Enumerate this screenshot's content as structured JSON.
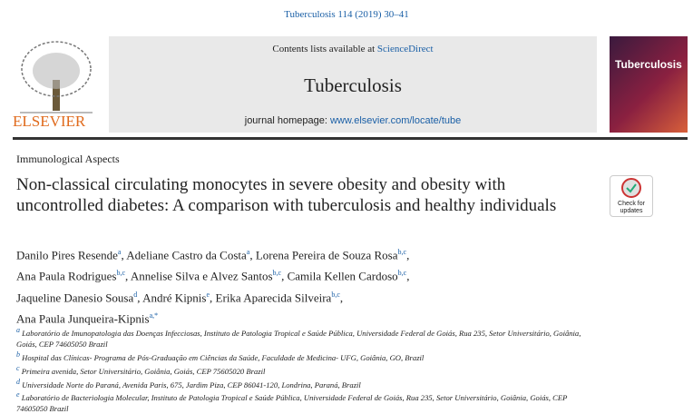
{
  "journal_ref": "Tuberculosis 114 (2019) 30–41",
  "banner": {
    "contents_prefix": "Contents lists available at",
    "contents_link": "ScienceDirect",
    "journal": "Tuberculosis",
    "homepage_prefix": "journal homepage:",
    "homepage_link": "www.elsevier.com/locate/tube",
    "publisher": "ELSEVIER",
    "cover_title": "Tuberculosis"
  },
  "section": "Immunological Aspects",
  "title": "Non-classical circulating monocytes in severe obesity and obesity with uncontrolled diabetes: A comparison with tuberculosis and healthy individuals",
  "check_updates": [
    "Check for",
    "updates"
  ],
  "author_lines": [
    [
      {
        "name": "Danilo Pires Resende",
        "sup": "a",
        "sep": ","
      },
      {
        "name": "Adeliane Castro da Costa",
        "sup": "a",
        "sep": ","
      },
      {
        "name": "Lorena Pereira de Souza Rosa",
        "sup": "b,c",
        "sep": ","
      }
    ],
    [
      {
        "name": "Ana Paula Rodrigues",
        "sup": "b,c",
        "sep": ","
      },
      {
        "name": "Annelise Silva e Alvez Santos",
        "sup": "b,c",
        "sep": ","
      },
      {
        "name": "Camila Kellen Cardoso",
        "sup": "b,c",
        "sep": ","
      }
    ],
    [
      {
        "name": "Jaqueline Danesio Sousa",
        "sup": "d",
        "sep": ","
      },
      {
        "name": "André Kipnis",
        "sup": "e",
        "sep": ","
      },
      {
        "name": "Erika Aparecida Silveira",
        "sup": "b,c",
        "sep": ","
      }
    ],
    [
      {
        "name": "Ana Paula Junqueira-Kipnis",
        "sup": "a,*"
      }
    ]
  ],
  "affiliations": [
    {
      "key": "a",
      "text": "Laboratório de Imunopatologia das Doenças Infecciosas, Instituto de Patologia Tropical e Saúde Pública, Universidade Federal de Goiás, Rua 235, Setor Universitário, Goiânia, Goiás, CEP 74605050 Brazil"
    },
    {
      "key": "b",
      "text": "Hospital das Clínicas- Programa de Pós-Graduação em Ciências da Saúde, Faculdade de Medicina- UFG, Goiânia, GO, Brazil"
    },
    {
      "key": "c",
      "text": "Primeira avenida, Setor Universitário, Goiânia, Goiás, CEP 75605020 Brazil"
    },
    {
      "key": "d",
      "text": "Universidade Norte do Paraná, Avenida Paris, 675, Jardim Piza, CEP 86041-120, Londrina, Paraná, Brazil"
    },
    {
      "key": "e",
      "text": "Laboratório de Bacteriologia Molecular, Instituto de Patologia Tropical e Saúde Pública, Universidade Federal de Goiás, Rua 235, Setor Universitário, Goiânia, Goiás, CEP 74605050 Brazil"
    }
  ]
}
